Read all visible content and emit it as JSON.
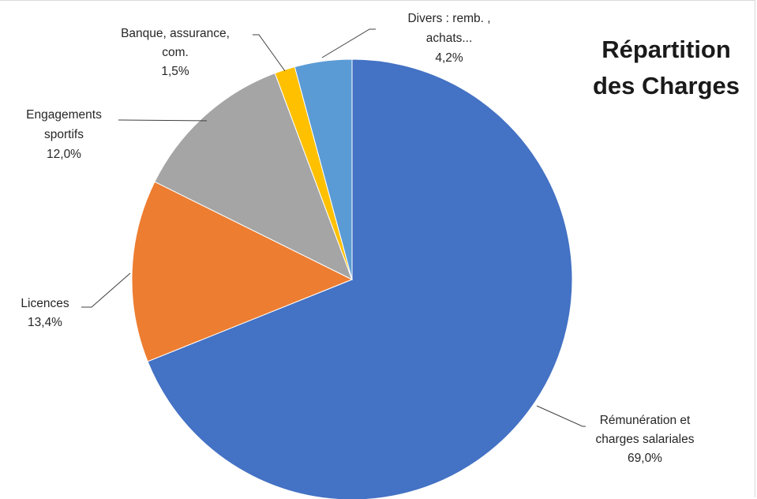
{
  "chart_data": {
    "type": "pie",
    "title": [
      "Répartition",
      "des Charges"
    ],
    "slices": [
      {
        "label": [
          "Rémunération et",
          "charges salariales"
        ],
        "value": 69.0,
        "value_label": "69,0%",
        "color": "#4472c4"
      },
      {
        "label": [
          "Licences"
        ],
        "value": 13.4,
        "value_label": "13,4%",
        "color": "#ed7d31"
      },
      {
        "label": [
          "Engagements",
          "sportifs"
        ],
        "value": 12.0,
        "value_label": "12,0%",
        "color": "#a5a5a5"
      },
      {
        "label": [
          "Banque, assurance,",
          "com."
        ],
        "value": 1.5,
        "value_label": "1,5%",
        "color": "#ffc000"
      },
      {
        "label": [
          "Divers :  remb. ,",
          "achats..."
        ],
        "value": 4.2,
        "value_label": "4,2%",
        "color": "#5b9bd5"
      }
    ],
    "start": "12 o'clock",
    "direction": "clockwise",
    "legend": "none"
  }
}
